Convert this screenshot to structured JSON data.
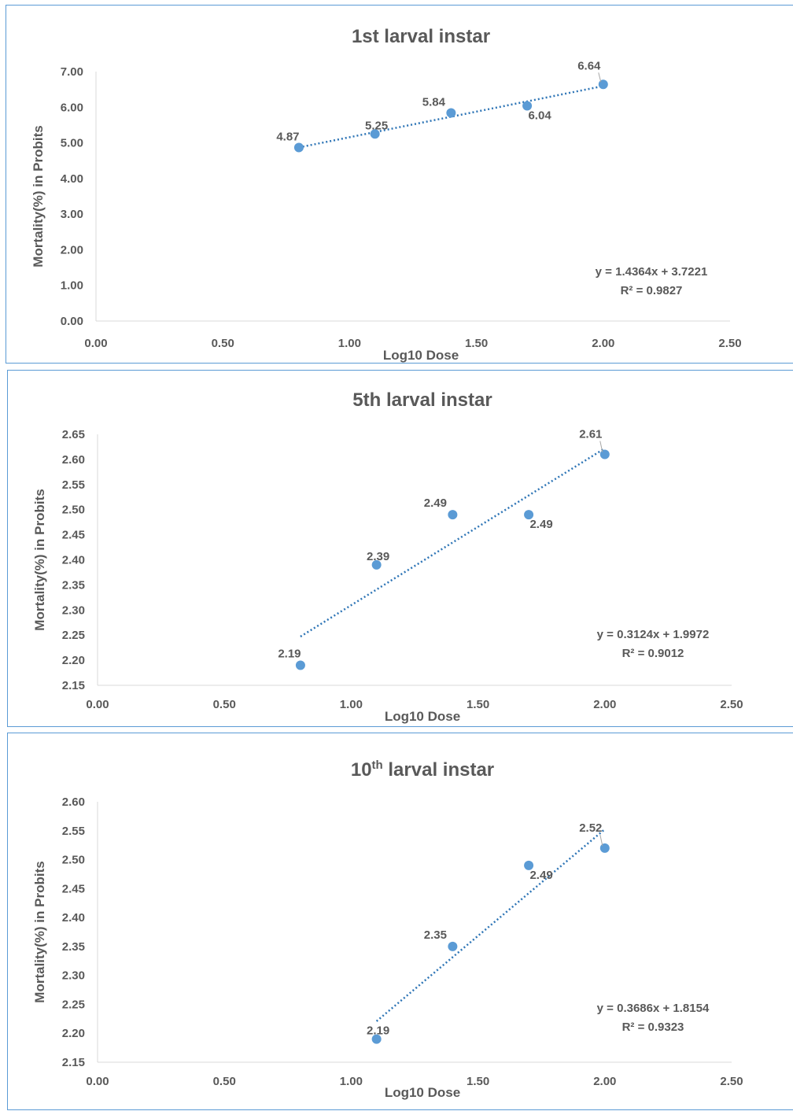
{
  "chart_data": [
    {
      "type": "scatter",
      "title": "1st  larval instar",
      "title_sup": "",
      "title_rest": "",
      "xlabel": "Log10 Dose",
      "ylabel": "Mortality(%) in Probits",
      "xlim": [
        0,
        2.5
      ],
      "ylim": [
        0,
        7
      ],
      "x_ticks": [
        "0.00",
        "0.50",
        "1.00",
        "1.50",
        "2.00",
        "2.50"
      ],
      "y_ticks": [
        "0.00",
        "1.00",
        "2.00",
        "3.00",
        "4.00",
        "5.00",
        "6.00",
        "7.00"
      ],
      "x": [
        0.8,
        1.1,
        1.4,
        1.7,
        2.0
      ],
      "y": [
        4.87,
        5.25,
        5.84,
        6.04,
        6.64
      ],
      "labels": [
        "4.87",
        "5.25",
        "5.84",
        "6.04",
        "6.64"
      ],
      "trendline": {
        "type": "linear",
        "slope": 1.4364,
        "intercept": 3.7221
      },
      "equation": "y = 1.4364x + 3.7221",
      "r2": "R² = 0.9827",
      "grid": false,
      "legend": "none",
      "marker_color": "#5b9bd5"
    },
    {
      "type": "scatter",
      "title": "5th larval instar",
      "title_sup": "",
      "title_rest": "",
      "xlabel": "Log10 Dose",
      "ylabel": "Mortality(%) in Probits",
      "xlim": [
        0,
        2.5
      ],
      "ylim": [
        2.15,
        2.65
      ],
      "x_ticks": [
        "0.00",
        "0.50",
        "1.00",
        "1.50",
        "2.00",
        "2.50"
      ],
      "y_ticks": [
        "2.15",
        "2.20",
        "2.25",
        "2.30",
        "2.35",
        "2.40",
        "2.45",
        "2.50",
        "2.55",
        "2.60",
        "2.65"
      ],
      "x": [
        0.8,
        1.1,
        1.4,
        1.7,
        2.0
      ],
      "y": [
        2.19,
        2.39,
        2.49,
        2.49,
        2.61
      ],
      "labels": [
        "2.19",
        "2.39",
        "2.49",
        "2.49",
        "2.61"
      ],
      "trendline": {
        "type": "linear",
        "slope": 0.3124,
        "intercept": 1.9972
      },
      "equation": "y = 0.3124x + 1.9972",
      "r2": "R² = 0.9012",
      "grid": false,
      "legend": "none",
      "marker_color": "#5b9bd5"
    },
    {
      "type": "scatter",
      "title": "10",
      "title_sup": "th",
      "title_rest": " larval instar",
      "xlabel": "Log10 Dose",
      "ylabel": "Mortality(%) in Probits",
      "xlim": [
        0,
        2.5
      ],
      "ylim": [
        2.15,
        2.6
      ],
      "x_ticks": [
        "0.00",
        "0.50",
        "1.00",
        "1.50",
        "2.00",
        "2.50"
      ],
      "y_ticks": [
        "2.15",
        "2.20",
        "2.25",
        "2.30",
        "2.35",
        "2.40",
        "2.45",
        "2.50",
        "2.55",
        "2.60"
      ],
      "x": [
        1.1,
        1.4,
        1.7,
        2.0
      ],
      "y": [
        2.19,
        2.35,
        2.49,
        2.52
      ],
      "labels": [
        "2.19",
        "2.35",
        "2.49",
        "2.52"
      ],
      "trendline": {
        "type": "linear",
        "slope": 0.3686,
        "intercept": 1.8154
      },
      "equation": "y = 0.3686x + 1.8154",
      "r2": "R² = 0.9323",
      "grid": false,
      "legend": "none",
      "marker_color": "#5b9bd5"
    }
  ]
}
